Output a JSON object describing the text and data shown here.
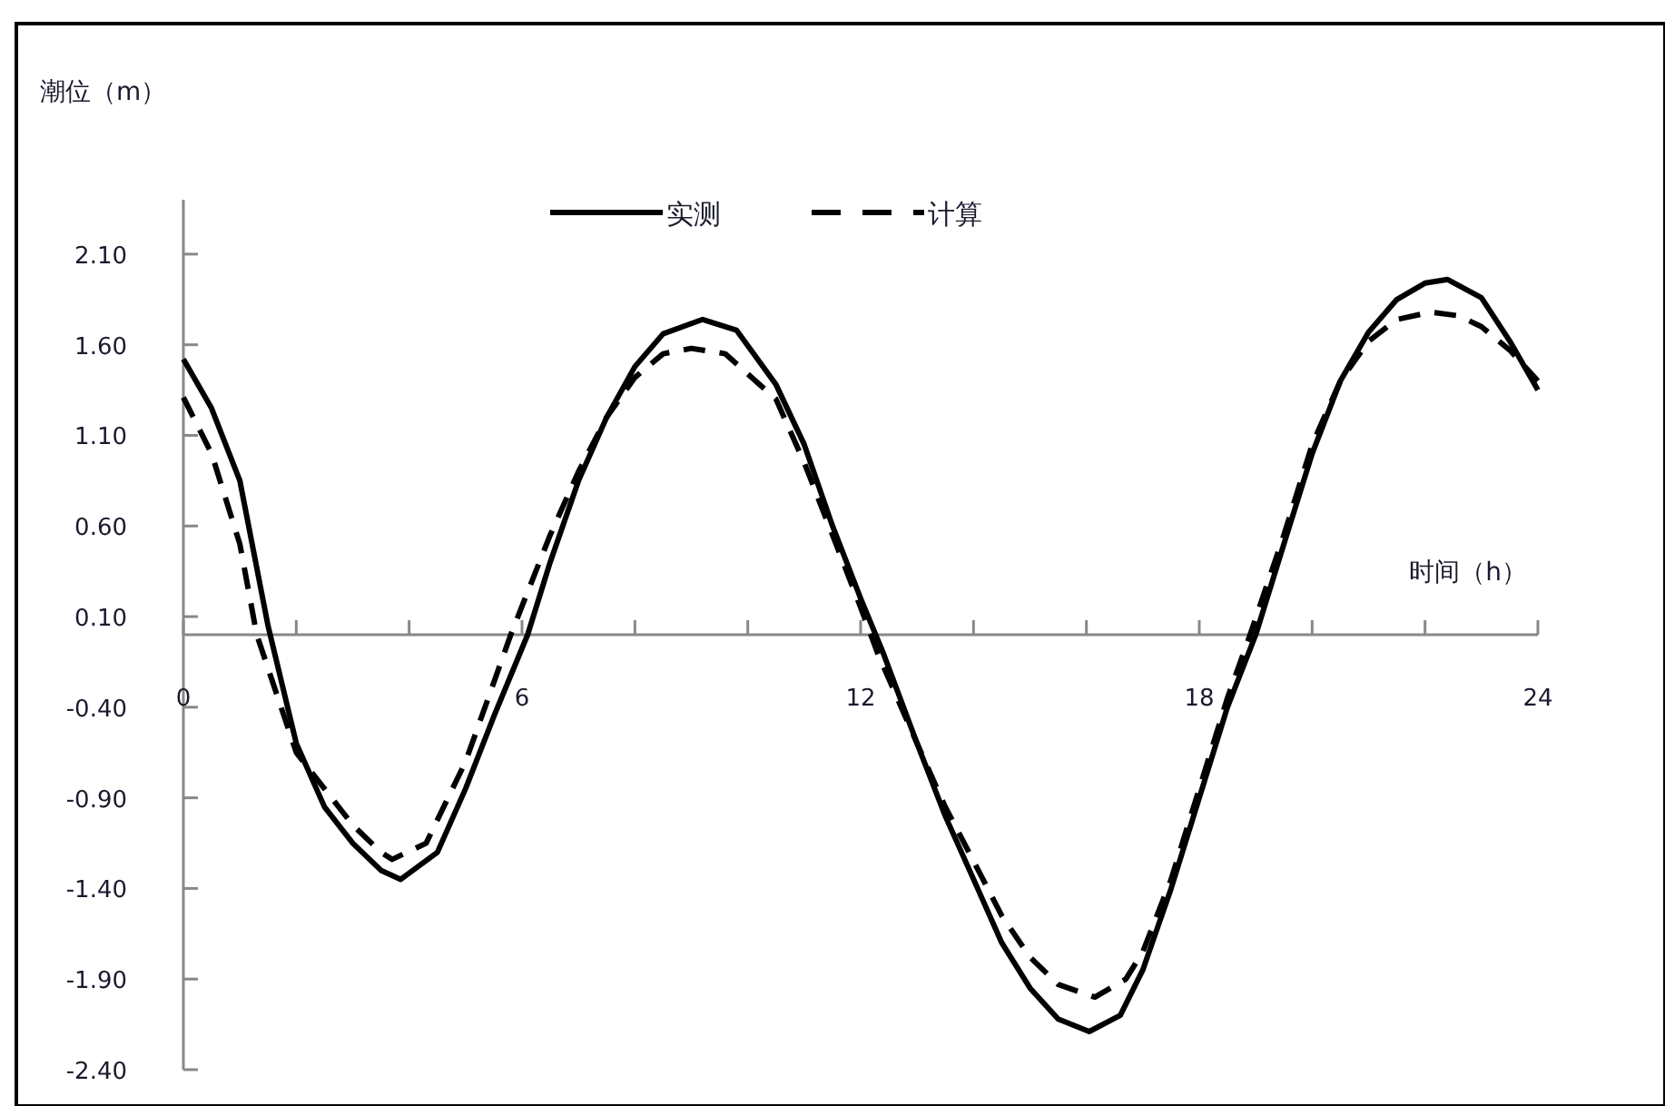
{
  "chart_data": {
    "type": "line",
    "xlabel": "时间（h）",
    "ylabel": "潮位（m）",
    "legend": "top",
    "grid": false,
    "xlim": [
      0,
      24
    ],
    "xticks": [
      0,
      {
        "value": 2,
        "label": null
      },
      {
        "value": 4,
        "label": null
      },
      6,
      {
        "value": 8,
        "label": null
      },
      {
        "value": 10,
        "label": null
      },
      12,
      {
        "value": 14,
        "label": null
      },
      {
        "value": 16,
        "label": null
      },
      18,
      {
        "value": 20,
        "label": null
      },
      {
        "value": 22,
        "label": null
      },
      24
    ],
    "ylim": [
      -2.4,
      2.4
    ],
    "yticks": [
      {
        "value": 2.1,
        "label": "2.10"
      },
      {
        "value": 1.6,
        "label": "1.60"
      },
      {
        "value": 1.1,
        "label": "1.10"
      },
      {
        "value": 0.6,
        "label": "0.60"
      },
      {
        "value": 0.1,
        "label": "0.10"
      },
      {
        "value": -0.4,
        "label": "-0.40"
      },
      {
        "value": -0.9,
        "label": "-0.90"
      },
      {
        "value": -1.4,
        "label": "-1.40"
      },
      {
        "value": -1.9,
        "label": "-1.90"
      },
      {
        "value": -2.4,
        "label": "-2.40"
      }
    ],
    "series": [
      {
        "name": "实测",
        "color": "#000000",
        "line_style": "solid",
        "x": [
          0,
          0.5,
          1,
          1.5,
          2,
          2.5,
          3,
          3.5,
          3.85,
          4.5,
          5,
          5.5,
          6.1,
          6.5,
          7,
          7.5,
          8,
          8.5,
          9.2,
          9.8,
          10.5,
          11,
          11.5,
          12,
          12.4,
          13,
          13.5,
          14,
          14.5,
          15,
          15.5,
          16.05,
          16.6,
          17,
          17.5,
          18,
          18.5,
          19,
          19.5,
          20,
          20.5,
          21,
          21.5,
          22,
          22.4,
          23,
          23.5,
          24
        ],
        "values": [
          1.52,
          1.25,
          0.85,
          0.05,
          -0.6,
          -0.95,
          -1.15,
          -1.3,
          -1.35,
          -1.2,
          -0.85,
          -0.45,
          0.0,
          0.4,
          0.85,
          1.2,
          1.48,
          1.66,
          1.74,
          1.68,
          1.38,
          1.05,
          0.6,
          0.2,
          -0.1,
          -0.6,
          -1.0,
          -1.35,
          -1.7,
          -1.95,
          -2.12,
          -2.19,
          -2.1,
          -1.85,
          -1.4,
          -0.9,
          -0.4,
          0.0,
          0.5,
          1.0,
          1.4,
          1.67,
          1.85,
          1.94,
          1.96,
          1.86,
          1.62,
          1.35
        ]
      },
      {
        "name": "计算",
        "color": "#000000",
        "line_style": "dashed",
        "x": [
          0,
          0.5,
          1,
          1.3,
          2,
          2.5,
          3,
          3.5,
          3.7,
          4.3,
          5,
          5.4,
          5.8,
          6.5,
          7,
          7.5,
          8,
          8.5,
          9,
          9.6,
          10.5,
          11,
          11.5,
          12,
          12.3,
          13,
          13.5,
          14,
          14.5,
          15,
          15.5,
          16.15,
          16.7,
          17,
          17.5,
          18,
          18.5,
          18.9,
          19.5,
          20,
          20.5,
          21,
          21.5,
          22.1,
          22.6,
          23,
          23.5,
          24
        ],
        "values": [
          1.31,
          1.0,
          0.5,
          0.0,
          -0.65,
          -0.85,
          -1.05,
          -1.2,
          -1.24,
          -1.15,
          -0.7,
          -0.35,
          0.0,
          0.55,
          0.9,
          1.2,
          1.42,
          1.55,
          1.58,
          1.55,
          1.3,
          0.95,
          0.55,
          0.15,
          -0.1,
          -0.6,
          -0.95,
          -1.25,
          -1.55,
          -1.78,
          -1.93,
          -2.0,
          -1.9,
          -1.75,
          -1.35,
          -0.85,
          -0.35,
          0.0,
          0.55,
          1.05,
          1.4,
          1.62,
          1.74,
          1.78,
          1.76,
          1.7,
          1.57,
          1.4
        ]
      }
    ]
  }
}
